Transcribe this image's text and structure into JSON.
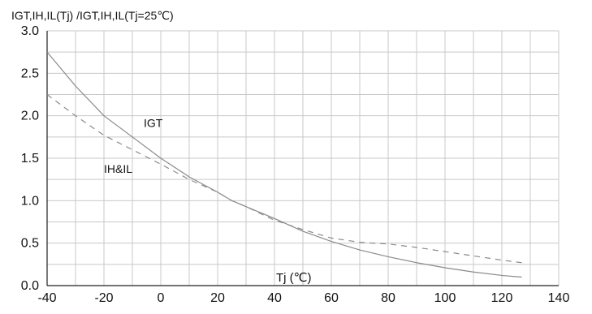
{
  "chart_data": {
    "type": "line",
    "title": "",
    "ylabel": "IGT,IH,IL(Tj) /IGT,IH,IL(Tj=25℃)",
    "xlabel": "Tj (℃)",
    "xlim": [
      -40,
      140
    ],
    "ylim": [
      0.0,
      3.0
    ],
    "xticks": [
      -40,
      -20,
      0,
      20,
      40,
      60,
      80,
      100,
      120,
      140
    ],
    "yticks": [
      "0.0",
      "0.5",
      "1.0",
      "1.5",
      "2.0",
      "2.5",
      "3.0"
    ],
    "grid": true,
    "series": [
      {
        "name": "IGT",
        "style": "solid",
        "x": [
          -40,
          -30,
          -20,
          -10,
          0,
          10,
          20,
          25,
          30,
          40,
          50,
          60,
          70,
          80,
          90,
          100,
          110,
          120,
          127
        ],
        "y": [
          2.75,
          2.35,
          2.0,
          1.75,
          1.5,
          1.28,
          1.1,
          1.0,
          0.93,
          0.79,
          0.64,
          0.52,
          0.42,
          0.34,
          0.27,
          0.21,
          0.16,
          0.12,
          0.1
        ]
      },
      {
        "name": "IH&IL",
        "style": "dashed",
        "x": [
          -40,
          -30,
          -20,
          -10,
          0,
          10,
          20,
          25,
          30,
          40,
          50,
          60,
          70,
          80,
          90,
          100,
          110,
          120,
          127
        ],
        "y": [
          2.25,
          2.0,
          1.77,
          1.6,
          1.43,
          1.25,
          1.1,
          1.0,
          0.93,
          0.77,
          0.66,
          0.56,
          0.51,
          0.49,
          0.45,
          0.4,
          0.35,
          0.3,
          0.27
        ]
      }
    ],
    "annotations": [
      {
        "text": "IGT",
        "x": -6,
        "y": 1.87
      },
      {
        "text": "IH&IL",
        "x": -20,
        "y": 1.33
      }
    ],
    "colors": {
      "grid": "#c8c8c8",
      "axis": "#222222",
      "line": "#8a8a8a",
      "text": "#111111"
    }
  }
}
